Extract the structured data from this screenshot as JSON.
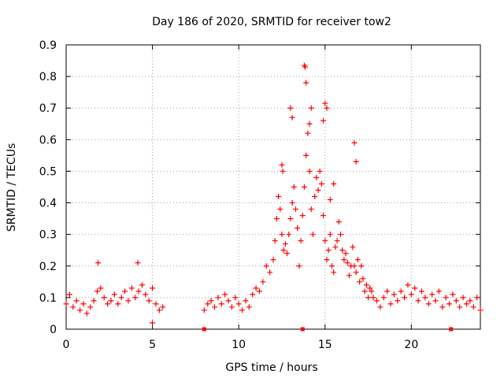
{
  "chart_data": {
    "type": "scatter",
    "title": "Day 186 of 2020, SRMTID for receiver tow2",
    "xlabel": "GPS time / hours",
    "ylabel": "SRMTID / TECUs",
    "xlim": [
      0,
      24
    ],
    "ylim": [
      0,
      0.9
    ],
    "xticks": [
      0,
      5,
      10,
      15,
      20
    ],
    "yticks": [
      0,
      0.1,
      0.2,
      0.3,
      0.4,
      0.5,
      0.6,
      0.7,
      0.8,
      0.9
    ],
    "xtick_labels": [
      "0",
      "5",
      "10",
      "15",
      "20"
    ],
    "ytick_labels": [
      "0",
      "0.1",
      "0.2",
      "0.3",
      "0.4",
      "0.5",
      "0.6",
      "0.7",
      "0.8",
      "0.9"
    ],
    "grid": true,
    "marker": "+",
    "color": "#ff0000",
    "gap_markers_x": [
      8.0,
      13.7,
      22.3
    ],
    "series": [
      {
        "name": "SRMTID",
        "x": [
          0.0,
          0.2,
          0.4,
          0.6,
          0.8,
          1.0,
          1.2,
          1.4,
          1.6,
          1.8,
          2.0,
          2.2,
          2.4,
          2.6,
          2.8,
          3.0,
          3.2,
          3.4,
          3.6,
          3.8,
          4.0,
          4.2,
          4.4,
          4.6,
          4.8,
          5.0,
          5.2,
          5.4,
          5.6,
          1.85,
          4.15,
          5.0,
          8.0,
          8.2,
          8.4,
          8.6,
          8.8,
          9.0,
          9.2,
          9.4,
          9.6,
          9.8,
          10.0,
          10.2,
          10.4,
          10.6,
          10.8,
          11.0,
          11.2,
          11.4,
          11.6,
          11.8,
          12.0,
          12.1,
          12.2,
          12.3,
          12.4,
          12.5,
          12.6,
          12.7,
          12.8,
          12.9,
          13.0,
          13.1,
          13.2,
          13.3,
          13.4,
          13.5,
          13.6,
          13.7,
          13.8,
          13.9,
          14.0,
          14.1,
          14.2,
          14.3,
          14.4,
          14.5,
          14.6,
          14.7,
          14.8,
          14.9,
          15.0,
          15.1,
          15.2,
          15.3,
          15.4,
          15.5,
          15.6,
          15.7,
          15.8,
          15.9,
          16.0,
          16.1,
          16.2,
          16.3,
          16.4,
          16.5,
          16.6,
          16.7,
          16.8,
          16.9,
          17.0,
          17.1,
          17.2,
          17.3,
          17.4,
          17.5,
          17.6,
          17.7,
          17.8,
          18.0,
          18.2,
          18.4,
          18.6,
          18.8,
          19.0,
          19.2,
          19.4,
          19.6,
          19.8,
          20.0,
          20.2,
          20.4,
          20.6,
          20.8,
          21.0,
          21.2,
          21.4,
          21.6,
          21.8,
          22.0,
          22.2,
          22.4,
          22.6,
          22.8,
          23.0,
          23.2,
          23.4,
          23.6,
          23.8,
          24.0,
          13.8,
          13.85,
          13.9,
          14.1,
          14.2,
          14.9,
          15.0,
          15.1,
          13.0,
          13.1,
          12.5,
          12.55,
          16.7,
          16.8,
          15.5,
          15.3
        ],
        "y": [
          0.08,
          0.11,
          0.07,
          0.09,
          0.06,
          0.08,
          0.05,
          0.07,
          0.09,
          0.12,
          0.13,
          0.1,
          0.08,
          0.09,
          0.11,
          0.08,
          0.1,
          0.12,
          0.09,
          0.13,
          0.1,
          0.12,
          0.14,
          0.11,
          0.09,
          0.13,
          0.08,
          0.06,
          0.07,
          0.21,
          0.21,
          0.02,
          0.06,
          0.08,
          0.09,
          0.07,
          0.1,
          0.08,
          0.11,
          0.09,
          0.07,
          0.1,
          0.08,
          0.06,
          0.09,
          0.07,
          0.11,
          0.13,
          0.12,
          0.15,
          0.2,
          0.18,
          0.22,
          0.28,
          0.35,
          0.42,
          0.38,
          0.3,
          0.25,
          0.27,
          0.24,
          0.3,
          0.35,
          0.4,
          0.45,
          0.38,
          0.32,
          0.2,
          0.28,
          0.36,
          0.45,
          0.55,
          0.62,
          0.5,
          0.38,
          0.3,
          0.42,
          0.48,
          0.44,
          0.5,
          0.46,
          0.36,
          0.28,
          0.22,
          0.25,
          0.3,
          0.2,
          0.18,
          0.26,
          0.28,
          0.34,
          0.3,
          0.25,
          0.22,
          0.24,
          0.21,
          0.17,
          0.2,
          0.26,
          0.2,
          0.18,
          0.22,
          0.15,
          0.2,
          0.16,
          0.12,
          0.14,
          0.1,
          0.13,
          0.12,
          0.1,
          0.09,
          0.07,
          0.1,
          0.12,
          0.08,
          0.11,
          0.09,
          0.12,
          0.1,
          0.14,
          0.11,
          0.13,
          0.09,
          0.12,
          0.1,
          0.08,
          0.11,
          0.09,
          0.12,
          0.07,
          0.1,
          0.08,
          0.11,
          0.09,
          0.07,
          0.1,
          0.08,
          0.09,
          0.07,
          0.1,
          0.06,
          0.835,
          0.83,
          0.78,
          0.65,
          0.7,
          0.66,
          0.715,
          0.7,
          0.7,
          0.67,
          0.52,
          0.5,
          0.59,
          0.53,
          0.46,
          0.41
        ]
      }
    ]
  }
}
